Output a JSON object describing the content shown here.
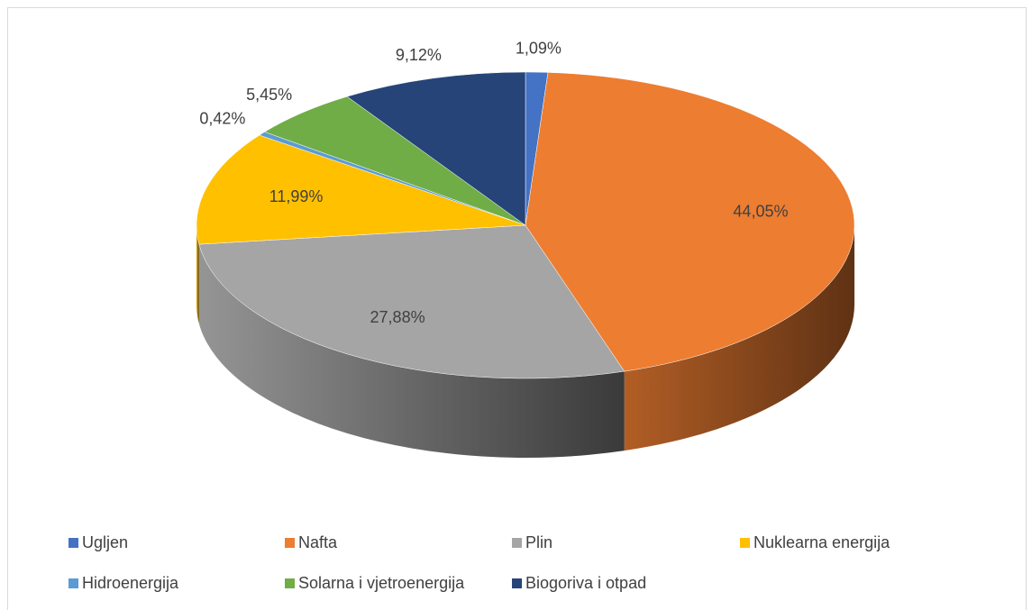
{
  "chart_data": {
    "type": "pie3d",
    "categories": [
      "Ugljen",
      "Nafta",
      "Plin",
      "Nuklearna energija",
      "Hidroenergija",
      "Solarna i vjetroenergija",
      "Biogoriva i otpad"
    ],
    "values": [
      1.09,
      44.05,
      27.88,
      11.99,
      0.42,
      5.45,
      9.12
    ],
    "value_labels": [
      "1,09%",
      "44,05%",
      "27,88%",
      "11,99%",
      "0,42%",
      "5,45%",
      "9,12%"
    ],
    "colors": [
      "#4472c4",
      "#ed7d31",
      "#a5a5a5",
      "#ffc000",
      "#5b9bd5",
      "#70ad47",
      "#264478"
    ],
    "legend": "bottom"
  }
}
